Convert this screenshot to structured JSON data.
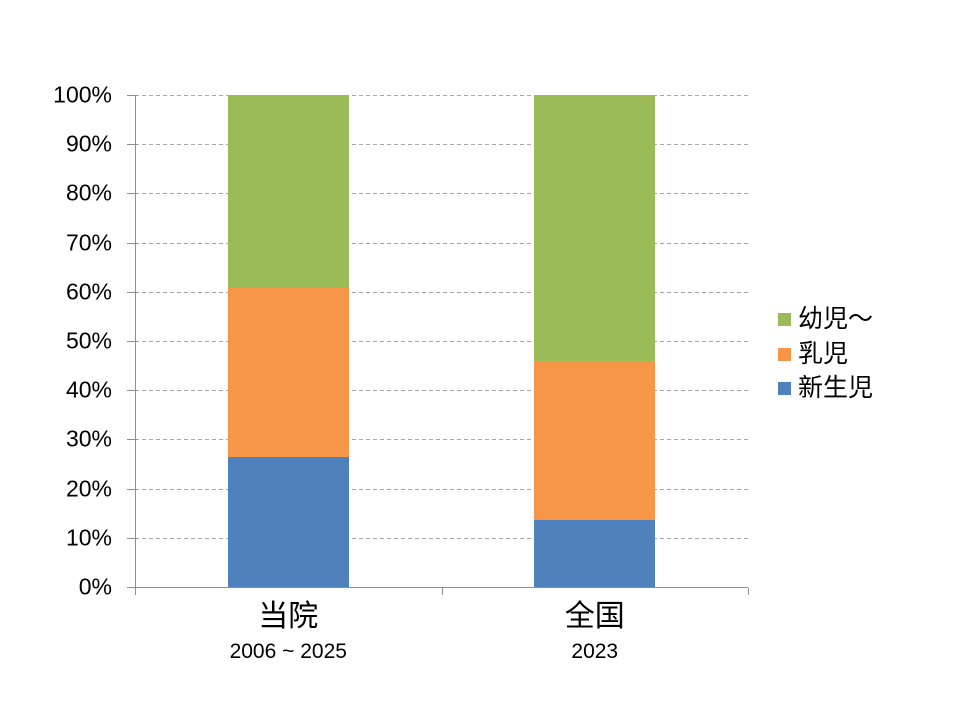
{
  "chart_data": {
    "type": "bar",
    "variant": "100%-stacked-column",
    "title": "",
    "xlabel": "",
    "ylabel": "",
    "categories": [
      {
        "label": "当院",
        "sublabel": "2006 ~ 2025"
      },
      {
        "label": "全国",
        "sublabel": "2023"
      }
    ],
    "series": [
      {
        "name": "新生児",
        "color": "#4F81BD",
        "values": [
          26.5,
          13.6
        ]
      },
      {
        "name": "乳児",
        "color": "#F79646",
        "values": [
          34.3,
          32.4
        ]
      },
      {
        "name": "幼児～",
        "color": "#9BBB59",
        "values": [
          39.2,
          54.0
        ]
      }
    ],
    "y_axis": {
      "min": 0,
      "max": 100,
      "ticks": [
        "0%",
        "10%",
        "20%",
        "30%",
        "40%",
        "50%",
        "60%",
        "70%",
        "80%",
        "90%",
        "100%"
      ],
      "gridlines": "dashed"
    },
    "legend": {
      "position": "right",
      "items": [
        "幼児～",
        "乳児",
        "新生児"
      ]
    }
  },
  "colors": {
    "background": "#FFFFFF",
    "gridline": "#A6A6A6",
    "axis": "#8E8E8E",
    "text": "#000000"
  }
}
